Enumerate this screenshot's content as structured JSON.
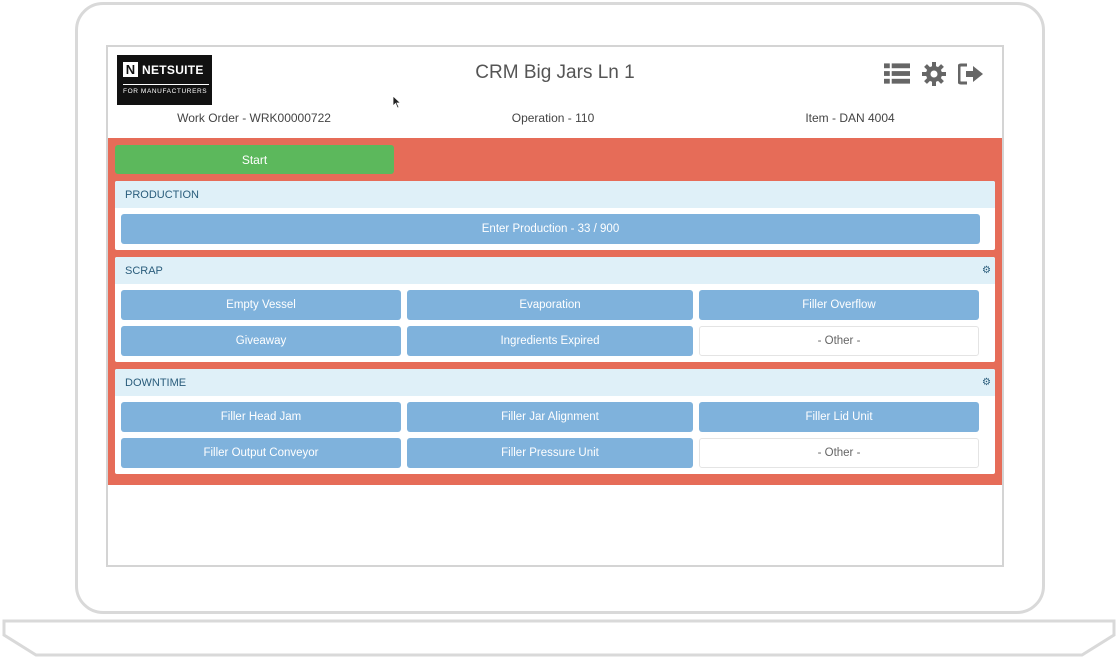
{
  "header": {
    "logo": {
      "brand": "NETSUITE",
      "letter": "N",
      "tagline": "FOR MANUFACTURERS"
    },
    "title": "CRM Big Jars Ln 1",
    "icons": [
      "list-icon",
      "gear-icon",
      "sign-out-icon"
    ],
    "work_order": "Work Order - WRK00000722",
    "operation": "Operation - 110",
    "item": "Item - DAN 4004"
  },
  "start_label": "Start",
  "production": {
    "title": "PRODUCTION",
    "enter_label": "Enter Production - 33 / 900"
  },
  "scrap": {
    "title": "SCRAP",
    "buttons": [
      "Empty Vessel",
      "Evaporation",
      "Filler Overflow",
      "Giveaway",
      "Ingredients Expired",
      "- Other -"
    ]
  },
  "downtime": {
    "title": "DOWNTIME",
    "buttons": [
      "Filler Head Jam",
      "Filler Jar Alignment",
      "Filler Lid Unit",
      "Filler Output Conveyor",
      "Filler Pressure Unit",
      "- Other -"
    ]
  },
  "colors": {
    "panel": "#e66c58",
    "start": "#5cb85c",
    "button": "#7fb2dc",
    "section_head": "#dff0f8"
  }
}
